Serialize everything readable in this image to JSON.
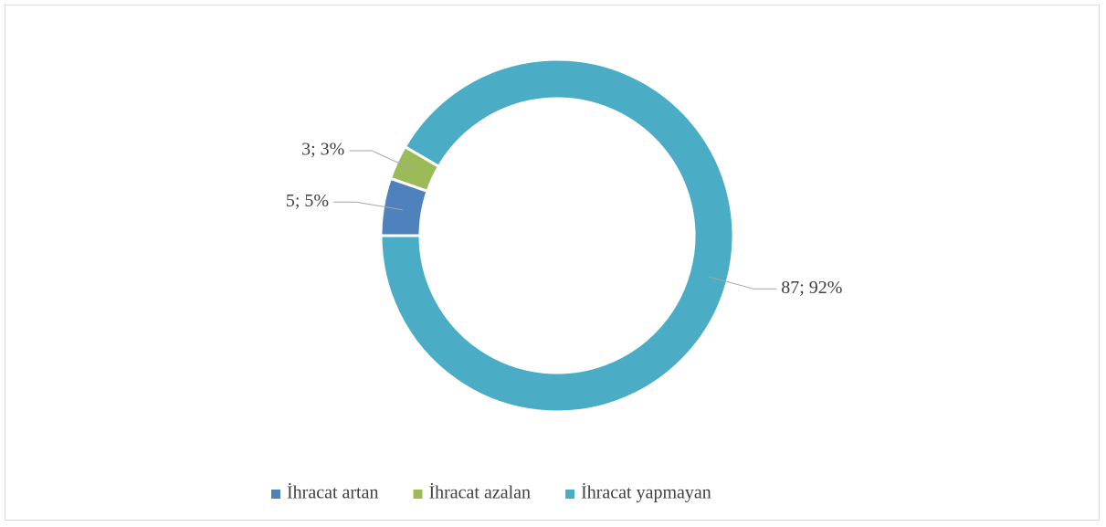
{
  "chart_data": {
    "type": "pie",
    "donut": true,
    "categories": [
      "İhracat artan",
      "İhracat azalan",
      "İhracat yapmayan"
    ],
    "values": [
      5,
      3,
      87
    ],
    "value_labels": [
      "5; 5%",
      "3; 3%",
      "87; 92%"
    ],
    "colors": [
      "#4f81bd",
      "#9bbb59",
      "#4bacc6"
    ],
    "legend": "bottom"
  }
}
